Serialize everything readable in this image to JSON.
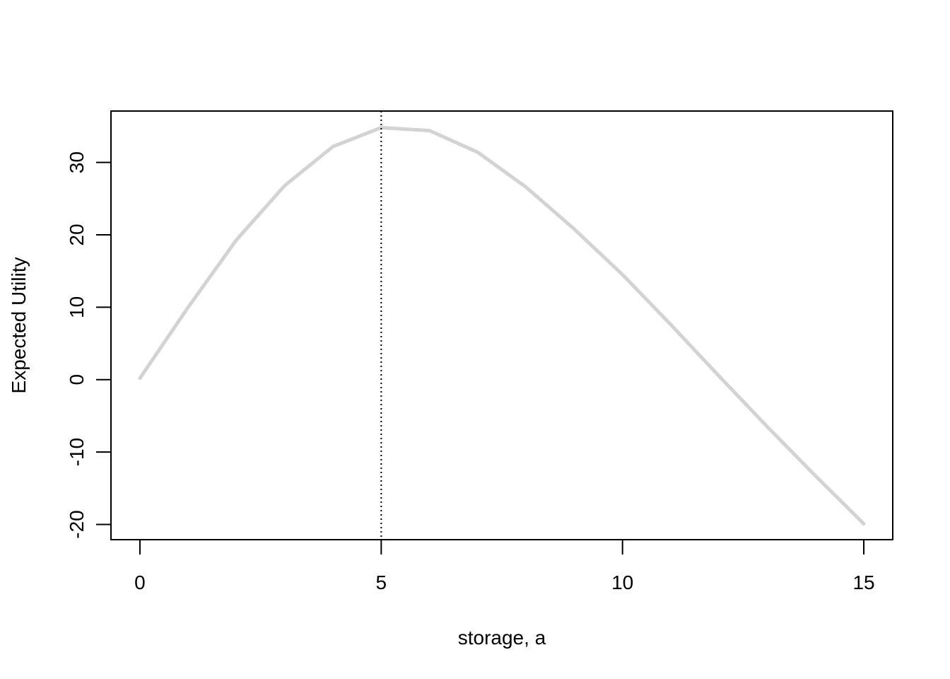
{
  "chart_data": {
    "type": "line",
    "title": "",
    "xlabel": "storage, a",
    "ylabel": "Expected Utility",
    "xlim": [
      -0.6,
      15.6
    ],
    "ylim": [
      -22.1,
      37.1
    ],
    "xticks": [
      0,
      5,
      10,
      15
    ],
    "xtick_labels": [
      "0",
      "5",
      "10",
      "15"
    ],
    "yticks": [
      -20,
      -10,
      0,
      10,
      20,
      30
    ],
    "ytick_labels": [
      "-20",
      "-10",
      "0",
      "10",
      "20",
      "30"
    ],
    "grid": false,
    "series": [
      {
        "color": "#d3d3d3",
        "x": [
          0,
          1,
          2,
          3,
          4,
          5,
          6,
          7,
          8,
          9,
          10,
          11,
          12,
          13,
          14,
          15
        ],
        "y": [
          0.2,
          10.0,
          19.3,
          26.8,
          32.2,
          34.8,
          34.4,
          31.4,
          26.6,
          20.8,
          14.5,
          7.6,
          0.5,
          -6.5,
          -13.3,
          -19.9
        ]
      }
    ],
    "vline": {
      "x": 5,
      "style": "dotted",
      "color": "#000000"
    }
  }
}
